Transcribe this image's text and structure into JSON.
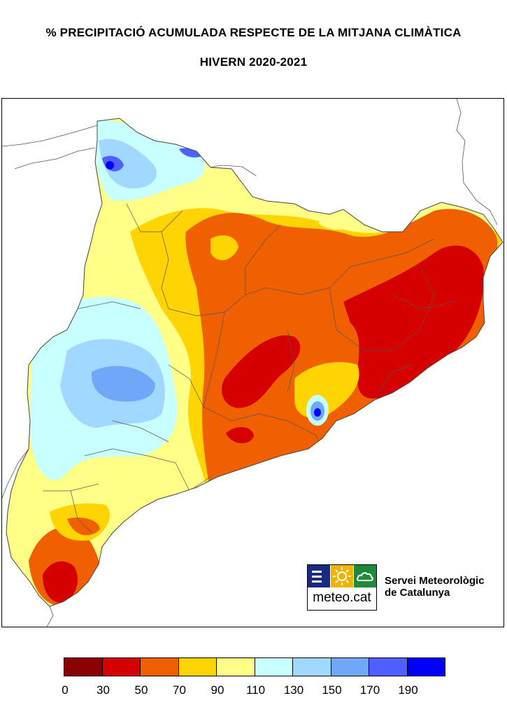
{
  "title_line1": "% PRECIPITACIÓ ACUMULADA RESPECTE DE LA MITJANA CLIMÀTICA",
  "title_line2": "HIVERN 2020-2021",
  "logo": {
    "text": "meteo.cat",
    "colors": {
      "left": "#1a2a80",
      "middle": "#f0b400",
      "right": "#1e8a3a"
    }
  },
  "organization": {
    "line1": "Servei Meteorològic",
    "line2": "de Catalunya"
  },
  "legend": {
    "classes": [
      {
        "from": 0,
        "to": 30,
        "color": "#8b0000"
      },
      {
        "from": 30,
        "to": 50,
        "color": "#d60000"
      },
      {
        "from": 50,
        "to": 70,
        "color": "#f06000"
      },
      {
        "from": 70,
        "to": 90,
        "color": "#ffd400"
      },
      {
        "from": 90,
        "to": 110,
        "color": "#ffff88"
      },
      {
        "from": 110,
        "to": 130,
        "color": "#c8ffff"
      },
      {
        "from": 130,
        "to": 150,
        "color": "#a0d8ff"
      },
      {
        "from": 150,
        "to": 170,
        "color": "#70a8f8"
      },
      {
        "from": 170,
        "to": 190,
        "color": "#5060ff"
      },
      {
        "from": 190,
        "to": null,
        "color": "#0000ff"
      }
    ],
    "labels": [
      "0",
      "30",
      "50",
      "70",
      "90",
      "110",
      "130",
      "150",
      "170",
      "190"
    ]
  }
}
